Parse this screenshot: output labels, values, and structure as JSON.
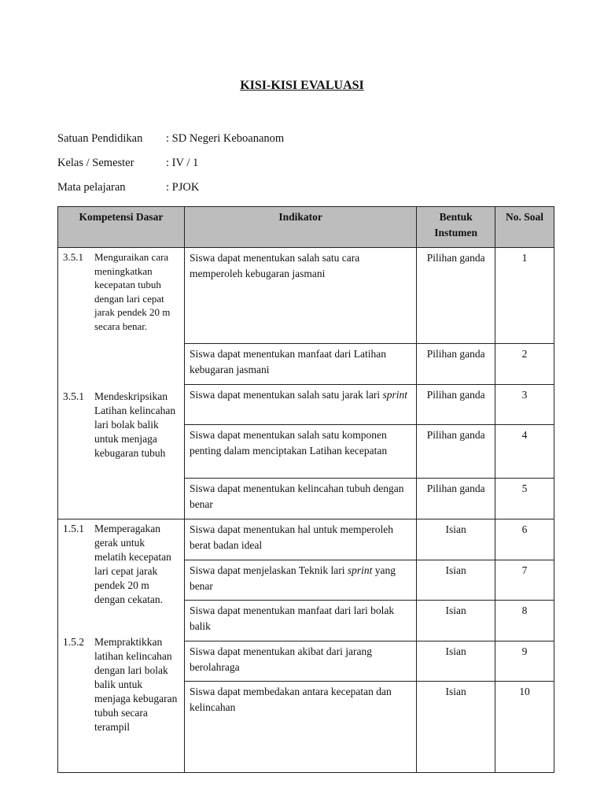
{
  "title": "KISI-KISI EVALUASI",
  "meta": [
    {
      "label": "Satuan Pendidikan",
      "value": ": SD Negeri Keboananom"
    },
    {
      "label": "Kelas / Semester",
      "value": ": IV / 1"
    },
    {
      "label": "Mata pelajaran",
      "value": ": PJOK"
    }
  ],
  "table": {
    "headers": [
      "Kompetensi Dasar",
      "Indikator",
      "Bentuk Instumen",
      "No. Soal"
    ],
    "kd": [
      {
        "num": "3.5.1",
        "text": "Menguraikan cara meningkatkan kecepatan tubuh dengan  lari cepat jarak pendek 20 m secara benar."
      },
      {
        "num": "3.5.1",
        "text": "Mendeskripsikan Latihan kelincahan lari bolak balik untuk menjaga kebugaran tubuh"
      },
      {
        "num": "1.5.1",
        "text": "Memperagakan gerak untuk melatih kecepatan lari cepat jarak pendek 20 m dengan cekatan."
      },
      {
        "num": "1.5.2",
        "text": "Mempraktikkan latihan kelincahan dengan lari bolak balik untuk menjaga kebugaran tubuh secara terampil"
      }
    ],
    "rows": [
      {
        "indikator": "Siswa dapat menentukan salah satu cara memperoleh kebugaran jasmani",
        "italic": "",
        "bentuk": "Pilihan ganda",
        "no": "1"
      },
      {
        "indikator": "Siswa dapat menentukan manfaat dari Latihan kebugaran jasmani",
        "italic": "",
        "bentuk": "Pilihan ganda",
        "no": "2"
      },
      {
        "indikator": "Siswa dapat menentukan salah satu jarak lari ",
        "italic": "sprint",
        "bentuk": "Pilihan ganda",
        "no": "3"
      },
      {
        "indikator": "Siswa dapat menentukan salah satu komponen penting dalam menciptakan Latihan kecepatan",
        "italic": "",
        "bentuk": "Pilihan ganda",
        "no": "4"
      },
      {
        "indikator": "Siswa dapat menentukan kelincahan tubuh dengan benar",
        "italic": "",
        "bentuk": "Pilihan ganda",
        "no": "5"
      },
      {
        "indikator": "Siswa dapat menentukan hal untuk memperoleh berat badan ideal",
        "italic": "",
        "bentuk": "Isian",
        "no": "6"
      },
      {
        "indikator": "Siswa dapat menjelaskan Teknik lari ",
        "italic": "sprint",
        "after": " yang benar",
        "bentuk": "Isian",
        "no": "7"
      },
      {
        "indikator": "Siswa dapat menentukan manfaat dari lari bolak balik",
        "italic": "",
        "bentuk": "Isian",
        "no": "8"
      },
      {
        "indikator": "Siswa dapat menentukan akibat dari jarang berolahraga",
        "italic": "",
        "bentuk": "Isian",
        "no": "9"
      },
      {
        "indikator": "Siswa dapat membedakan antara kecepatan dan kelincahan",
        "italic": "",
        "bentuk": "Isian",
        "no": "10"
      }
    ]
  }
}
